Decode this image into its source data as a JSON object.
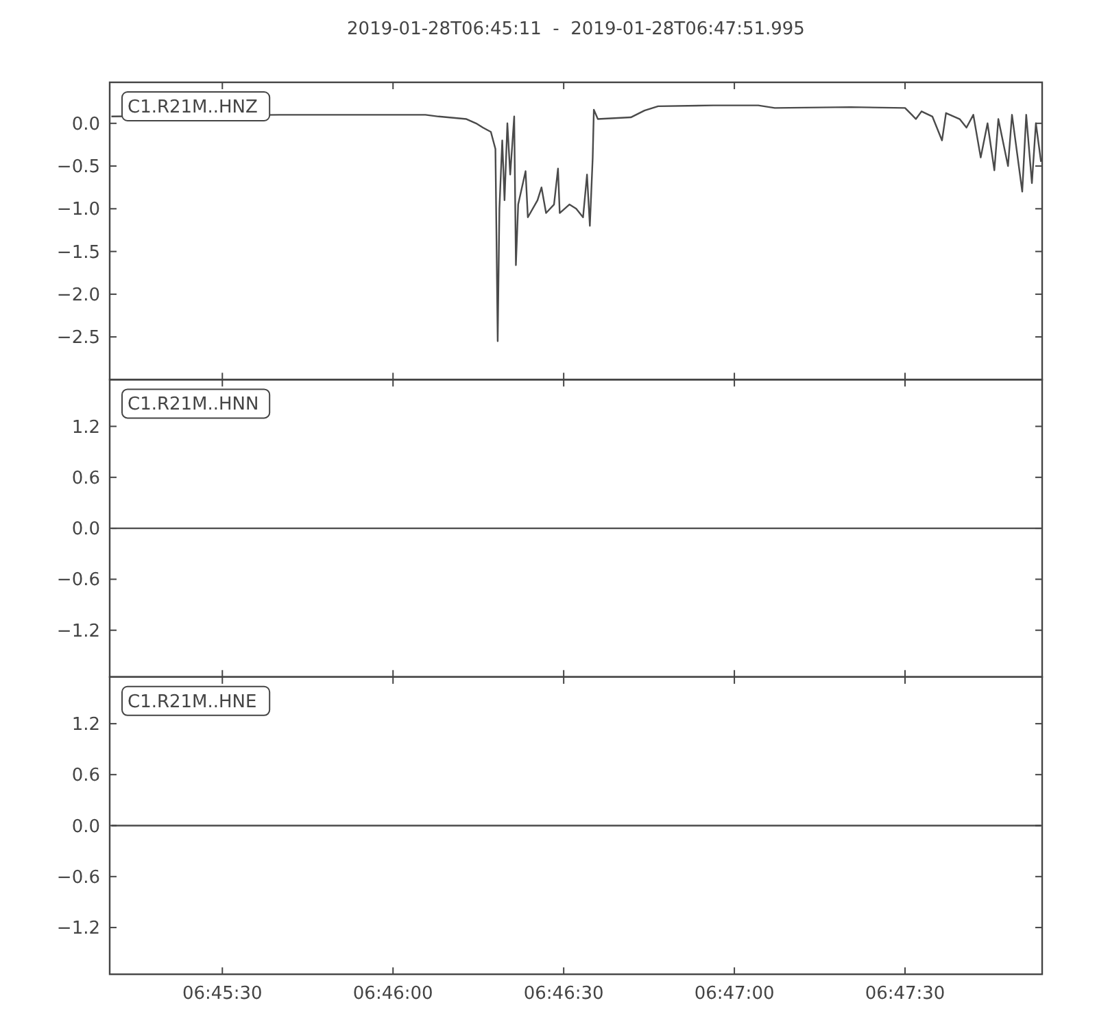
{
  "chart_data": [
    {
      "type": "line",
      "title": "2019-01-28T06:45:11  -  2019-01-28T06:47:51.995",
      "annotations": [
        "C1.R21M..HNZ"
      ],
      "xlim": [
        "2019-01-28T06:45:10.2",
        "2019-01-28T06:47:54.1"
      ],
      "xticks": [
        "2019-01-28T06:45:30",
        "2019-01-28T06:46:00",
        "2019-01-28T06:46:30",
        "2019-01-28T06:47:00",
        "2019-01-28T06:47:30"
      ],
      "tick_labels": "y",
      "ylim": [
        -3.0,
        0.48
      ],
      "yticks": [
        {
          "value": 0,
          "label": "0.0"
        },
        {
          "value": -0.5,
          "label": "−0.5"
        },
        {
          "value": -1,
          "label": "−1.0"
        },
        {
          "value": -1.5,
          "label": "−1.5"
        },
        {
          "value": -2,
          "label": "−2.0"
        },
        {
          "value": -2.5,
          "label": "−2.5"
        }
      ],
      "grid": false,
      "x": [
        "2019-01-28T06:45:10.5",
        "2019-01-28T06:45:40",
        "2019-01-28T06:46:05.7",
        "2019-01-28T06:46:08",
        "2019-01-28T06:46:12.9",
        "2019-01-28T06:46:14.6",
        "2019-01-28T06:46:15.8",
        "2019-01-28T06:46:17.2",
        "2019-01-28T06:46:18",
        "2019-01-28T06:46:18.4",
        "2019-01-28T06:46:18.7",
        "2019-01-28T06:46:19.2",
        "2019-01-28T06:46:19.6",
        "2019-01-28T06:46:20.1",
        "2019-01-28T06:46:20.6",
        "2019-01-28T06:46:21.3",
        "2019-01-28T06:46:21.6",
        "2019-01-28T06:46:22",
        "2019-01-28T06:46:23.3",
        "2019-01-28T06:46:23.7",
        "2019-01-28T06:46:25.4",
        "2019-01-28T06:46:26.1",
        "2019-01-28T06:46:26.9",
        "2019-01-28T06:46:28.3",
        "2019-01-28T06:46:29",
        "2019-01-28T06:46:29.3",
        "2019-01-28T06:46:31",
        "2019-01-28T06:46:32.2",
        "2019-01-28T06:46:33.4",
        "2019-01-28T06:46:34.1",
        "2019-01-28T06:46:34.6",
        "2019-01-28T06:46:35.1",
        "2019-01-28T06:46:35.3",
        "2019-01-28T06:46:36",
        "2019-01-28T06:46:41.8",
        "2019-01-28T06:46:44.2",
        "2019-01-28T06:46:46.6",
        "2019-01-28T06:46:56.3",
        "2019-01-28T06:47:04.2",
        "2019-01-28T06:47:07.1",
        "2019-01-28T06:47:20.4",
        "2019-01-28T06:47:30",
        "2019-01-28T06:47:31.2",
        "2019-01-28T06:47:31.9",
        "2019-01-28T06:47:32.9",
        "2019-01-28T06:47:34.8",
        "2019-01-28T06:47:36.5",
        "2019-01-28T06:47:37.2",
        "2019-01-28T06:47:39.6",
        "2019-01-28T06:47:40.8",
        "2019-01-28T06:47:42",
        "2019-01-28T06:47:43.3",
        "2019-01-28T06:47:44.5",
        "2019-01-28T06:47:45.7",
        "2019-01-28T06:47:46.4",
        "2019-01-28T06:47:48.1",
        "2019-01-28T06:47:48.8",
        "2019-01-28T06:47:50.6",
        "2019-01-28T06:47:51.3",
        "2019-01-28T06:47:52.3",
        "2019-01-28T06:47:53",
        "2019-01-28T06:47:53.9"
      ],
      "series": [
        {
          "color": "#4a4a4a",
          "values": [
            0.08,
            0.1,
            0.1,
            0.08,
            0.05,
            0.0,
            -0.05,
            -0.1,
            -0.3,
            -2.55,
            -1.0,
            -0.2,
            -0.9,
            0.0,
            -0.6,
            0.08,
            -1.66,
            -0.95,
            -0.56,
            -1.1,
            -0.9,
            -0.75,
            -1.05,
            -0.95,
            -0.53,
            -1.05,
            -0.95,
            -1.0,
            -1.1,
            -0.6,
            -1.2,
            -0.4,
            0.16,
            0.05,
            0.07,
            0.15,
            0.2,
            0.21,
            0.21,
            0.18,
            0.19,
            0.18,
            0.1,
            0.05,
            0.14,
            0.08,
            -0.2,
            0.12,
            0.05,
            -0.05,
            0.1,
            -0.4,
            0.0,
            -0.55,
            0.05,
            -0.5,
            0.1,
            -0.8,
            0.1,
            -0.7,
            0.0,
            -0.45
          ]
        }
      ]
    },
    {
      "type": "line",
      "annotations": [
        "C1.R21M..HNN"
      ],
      "xlim": [
        "2019-01-28T06:45:10.2",
        "2019-01-28T06:47:54.1"
      ],
      "xticks": [
        "2019-01-28T06:45:30",
        "2019-01-28T06:46:00",
        "2019-01-28T06:46:30",
        "2019-01-28T06:47:00",
        "2019-01-28T06:47:30"
      ],
      "tick_labels": "y",
      "ylim": [
        -1.75,
        1.75
      ],
      "yticks": [
        {
          "value": 1.2,
          "label": "1.2"
        },
        {
          "value": 0.6,
          "label": "0.6"
        },
        {
          "value": 0,
          "label": "0.0"
        },
        {
          "value": -0.6,
          "label": "−0.6"
        },
        {
          "value": -1.2,
          "label": "−1.2"
        }
      ],
      "grid": false,
      "x": [
        "2019-01-28T06:45:10.5",
        "2019-01-28T06:47:53.9"
      ],
      "series": [
        {
          "color": "#4a4a4a",
          "values": [
            0,
            0
          ]
        }
      ]
    },
    {
      "type": "line",
      "annotations": [
        "C1.R21M..HNE"
      ],
      "xlim": [
        "2019-01-28T06:45:10.2",
        "2019-01-28T06:47:54.1"
      ],
      "xticks": [
        {
          "value": "2019-01-28T06:45:30",
          "label": "06:45:30"
        },
        {
          "value": "2019-01-28T06:46:00",
          "label": "06:46:00"
        },
        {
          "value": "2019-01-28T06:46:30",
          "label": "06:46:30"
        },
        {
          "value": "2019-01-28T06:47:00",
          "label": "06:47:00"
        },
        {
          "value": "2019-01-28T06:47:30",
          "label": "06:47:30"
        }
      ],
      "ylim": [
        -1.75,
        1.75
      ],
      "yticks": [
        {
          "value": 1.2,
          "label": "1.2"
        },
        {
          "value": 0.6,
          "label": "0.6"
        },
        {
          "value": 0,
          "label": "0.0"
        },
        {
          "value": -0.6,
          "label": "−0.6"
        },
        {
          "value": -1.2,
          "label": "−1.2"
        }
      ],
      "grid": false,
      "x": [
        "2019-01-28T06:45:10.5",
        "2019-01-28T06:47:53.9"
      ],
      "series": [
        {
          "color": "#4a4a4a",
          "values": [
            0,
            0
          ]
        }
      ]
    }
  ]
}
